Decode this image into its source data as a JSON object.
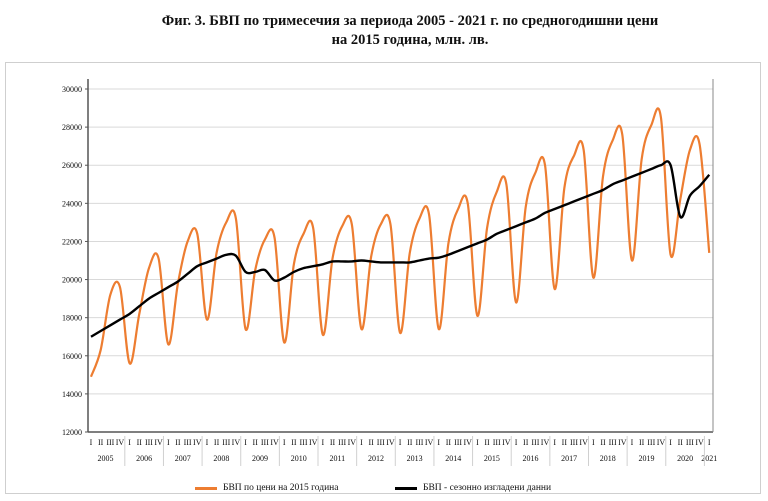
{
  "title_line1": "Фиг. 3. БВП по тримесечия за периода 2005 - 2021 г. по средногодишни цени",
  "title_line2": "на 2015 година, млн. лв.",
  "colors": {
    "gdp": "#ed7d31",
    "sa": "#000000"
  },
  "chart_data": {
    "type": "line",
    "title": "Фиг. 3. БВП по тримесечия за периода 2005 - 2021 г. по средногодишни цени на 2015 година, млн. лв.",
    "ylim": [
      12000,
      30000
    ],
    "yticks": [
      "30000",
      "28000",
      "26000",
      "24000",
      "22000",
      "20000",
      "18000",
      "16000",
      "14000",
      "12000"
    ],
    "quarter_labels": [
      "I",
      "II",
      "III",
      "IV"
    ],
    "years": [
      "2005",
      "2006",
      "2007",
      "2008",
      "2009",
      "2010",
      "2011",
      "2012",
      "2013",
      "2014",
      "2015",
      "2016",
      "2017",
      "2018",
      "2019",
      "2020",
      "2021"
    ],
    "grid": true,
    "legend_position": "bottom",
    "series": [
      {
        "name": "БВП  по цени на 2015 година",
        "color": "#ed7d31",
        "values": [
          14900,
          16300,
          19200,
          19600,
          15600,
          18200,
          20600,
          21100,
          16600,
          19800,
          22000,
          22400,
          17900,
          21400,
          23000,
          23200,
          17400,
          20500,
          22100,
          22200,
          16700,
          20800,
          22400,
          22700,
          17100,
          21100,
          22800,
          22900,
          17400,
          21200,
          22900,
          22900,
          17200,
          21400,
          23200,
          23400,
          17400,
          21900,
          23700,
          24000,
          18100,
          22700,
          24600,
          25000,
          18800,
          23800,
          25600,
          26000,
          19500,
          24800,
          26500,
          26800,
          20100,
          25400,
          27300,
          27600,
          21000,
          26300,
          28100,
          28500,
          21300,
          24200,
          26800,
          27100,
          21400
        ]
      },
      {
        "name": "БВП - сезонно изгладени данни",
        "color": "#000000",
        "values": [
          17000,
          17300,
          17600,
          17900,
          18200,
          18600,
          19000,
          19300,
          19600,
          19900,
          20300,
          20700,
          20900,
          21100,
          21300,
          21250,
          20400,
          20400,
          20500,
          19950,
          20100,
          20400,
          20600,
          20700,
          20800,
          20950,
          20950,
          20950,
          21000,
          20950,
          20900,
          20900,
          20900,
          20900,
          21000,
          21100,
          21150,
          21300,
          21500,
          21700,
          21900,
          22100,
          22400,
          22600,
          22800,
          23000,
          23200,
          23500,
          23700,
          23900,
          24100,
          24300,
          24500,
          24700,
          25000,
          25200,
          25400,
          25600,
          25800,
          26000,
          26000,
          23300,
          24400,
          24900,
          25500
        ]
      }
    ]
  }
}
